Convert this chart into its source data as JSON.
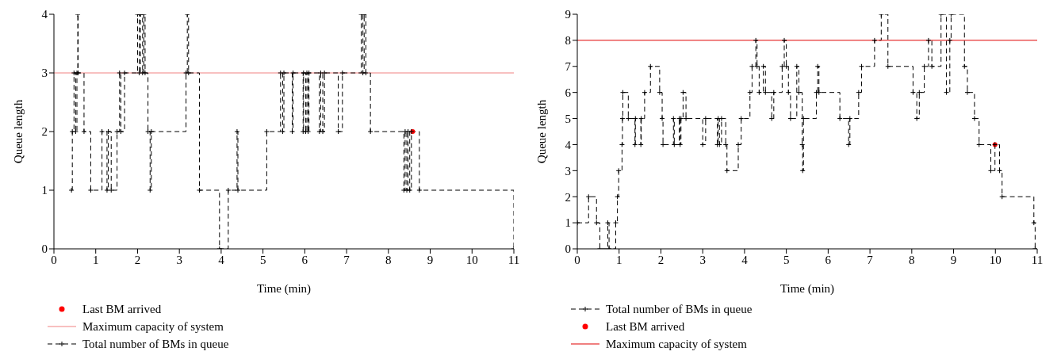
{
  "chart_data": [
    {
      "type": "step",
      "xlabel": "Time (min)",
      "ylabel": "Queue length",
      "xlim": [
        0,
        11
      ],
      "xticks": [
        0,
        1,
        2,
        3,
        4,
        5,
        6,
        7,
        8,
        9,
        10,
        11
      ],
      "ylim": [
        0,
        4
      ],
      "yticks": [
        0,
        1,
        2,
        3,
        4
      ],
      "legend": "bottom left",
      "grid": false,
      "series": [
        {
          "name": "Last BM arrived",
          "type": "scatter",
          "color": "#ff0000",
          "marker": "circle",
          "x": [
            8.58
          ],
          "values": [
            2
          ]
        },
        {
          "name": "Maximum capacity of system",
          "type": "line",
          "color": "#f08080",
          "marker": "none",
          "line_style": "solid",
          "x": [
            0,
            11
          ],
          "values": [
            3,
            3
          ]
        },
        {
          "name": "Total number of BMs in queue",
          "type": "step",
          "color": "#000000",
          "marker": "cross",
          "line_style": "dashed",
          "x": [
            0.42,
            0.44,
            0.48,
            0.52,
            0.55,
            0.57,
            0.58,
            0.72,
            0.88,
            1.15,
            1.27,
            1.3,
            1.37,
            1.51,
            1.57,
            1.6,
            1.69,
            2.0,
            2.04,
            2.07,
            2.12,
            2.15,
            2.18,
            2.25,
            2.3,
            2.33,
            3.16,
            3.19,
            3.22,
            3.48,
            3.96,
            4.17,
            4.38,
            4.4,
            5.09,
            5.42,
            5.47,
            5.5,
            5.7,
            5.72,
            5.96,
            5.97,
            6.02,
            6.05,
            6.08,
            6.1,
            6.35,
            6.38,
            6.43,
            6.47,
            6.8,
            6.9,
            7.35,
            7.39,
            7.42,
            7.46,
            7.57,
            8.37,
            8.4,
            8.44,
            8.47,
            8.51,
            8.55,
            8.74,
            11
          ],
          "values": [
            1,
            2,
            3,
            2,
            3,
            4,
            3,
            2,
            1,
            2,
            1,
            2,
            1,
            2,
            3,
            2,
            3,
            4,
            3,
            4,
            3,
            4,
            3,
            2,
            1,
            2,
            3,
            4,
            3,
            1,
            0,
            1,
            2,
            1,
            2,
            3,
            2,
            3,
            2,
            3,
            2,
            3,
            2,
            3,
            2,
            3,
            2,
            3,
            2,
            3,
            2,
            3,
            4,
            3,
            4,
            3,
            2,
            1,
            2,
            1,
            2,
            1,
            2,
            1,
            0
          ]
        }
      ]
    },
    {
      "type": "step",
      "xlabel": "Time (min)",
      "ylabel": "Queue length",
      "xlim": [
        0,
        11
      ],
      "xticks": [
        0,
        1,
        2,
        3,
        4,
        5,
        6,
        7,
        8,
        9,
        10,
        11
      ],
      "ylim": [
        0,
        9
      ],
      "yticks": [
        0,
        1,
        2,
        3,
        4,
        5,
        6,
        7,
        8,
        9
      ],
      "legend": "bottom left",
      "grid": false,
      "series": [
        {
          "name": "Total number of BMs in queue",
          "type": "step",
          "color": "#000000",
          "marker": "cross",
          "line_style": "dashed",
          "x": [
            0,
            0.27,
            0.46,
            0.54,
            0.73,
            0.76,
            0.92,
            0.96,
            0.99,
            1.07,
            1.08,
            1.09,
            1.22,
            1.38,
            1.39,
            1.52,
            1.53,
            1.61,
            1.75,
            1.97,
            2.03,
            2.05,
            2.3,
            2.32,
            2.44,
            2.46,
            2.48,
            2.53,
            2.6,
            3.0,
            3.07,
            3.35,
            3.37,
            3.4,
            3.45,
            3.55,
            3.58,
            3.85,
            3.92,
            4.13,
            4.18,
            4.27,
            4.3,
            4.35,
            4.45,
            4.5,
            4.65,
            4.7,
            4.9,
            4.95,
            5.0,
            5.05,
            5.1,
            5.25,
            5.3,
            5.38,
            5.39,
            5.41,
            5.72,
            5.75,
            5.78,
            6.28,
            6.49,
            6.52,
            6.73,
            6.8,
            7.11,
            7.27,
            7.43,
            8.03,
            8.12,
            8.18,
            8.3,
            8.4,
            8.48,
            8.7,
            8.83,
            8.91,
            8.94,
            9.26,
            9.33,
            9.5,
            9.61,
            9.89,
            9.99,
            10.1,
            10.16,
            10.92,
            10.95
          ],
          "values": [
            1,
            2,
            1,
            0,
            1,
            0,
            1,
            2,
            3,
            4,
            5,
            6,
            5,
            4,
            5,
            4,
            5,
            6,
            7,
            6,
            5,
            4,
            5,
            4,
            5,
            4,
            5,
            6,
            5,
            4,
            5,
            4,
            5,
            4,
            5,
            4,
            3,
            4,
            5,
            6,
            7,
            8,
            7,
            6,
            7,
            6,
            5,
            6,
            7,
            8,
            7,
            6,
            5,
            7,
            6,
            4,
            3,
            5,
            6,
            7,
            6,
            5,
            4,
            5,
            6,
            7,
            8,
            9,
            7,
            6,
            5,
            6,
            7,
            8,
            7,
            9,
            6,
            8,
            9,
            7,
            6,
            5,
            4,
            3,
            4,
            3,
            2,
            1,
            0
          ]
        },
        {
          "name": "Last BM arrived",
          "type": "scatter",
          "color": "#ff0000",
          "marker": "circle",
          "x": [
            9.99
          ],
          "values": [
            4
          ]
        },
        {
          "name": "Maximum capacity of system",
          "type": "line",
          "color": "#e00000",
          "marker": "none",
          "line_style": "solid",
          "x": [
            0,
            11
          ],
          "values": [
            8,
            8
          ]
        }
      ]
    }
  ]
}
